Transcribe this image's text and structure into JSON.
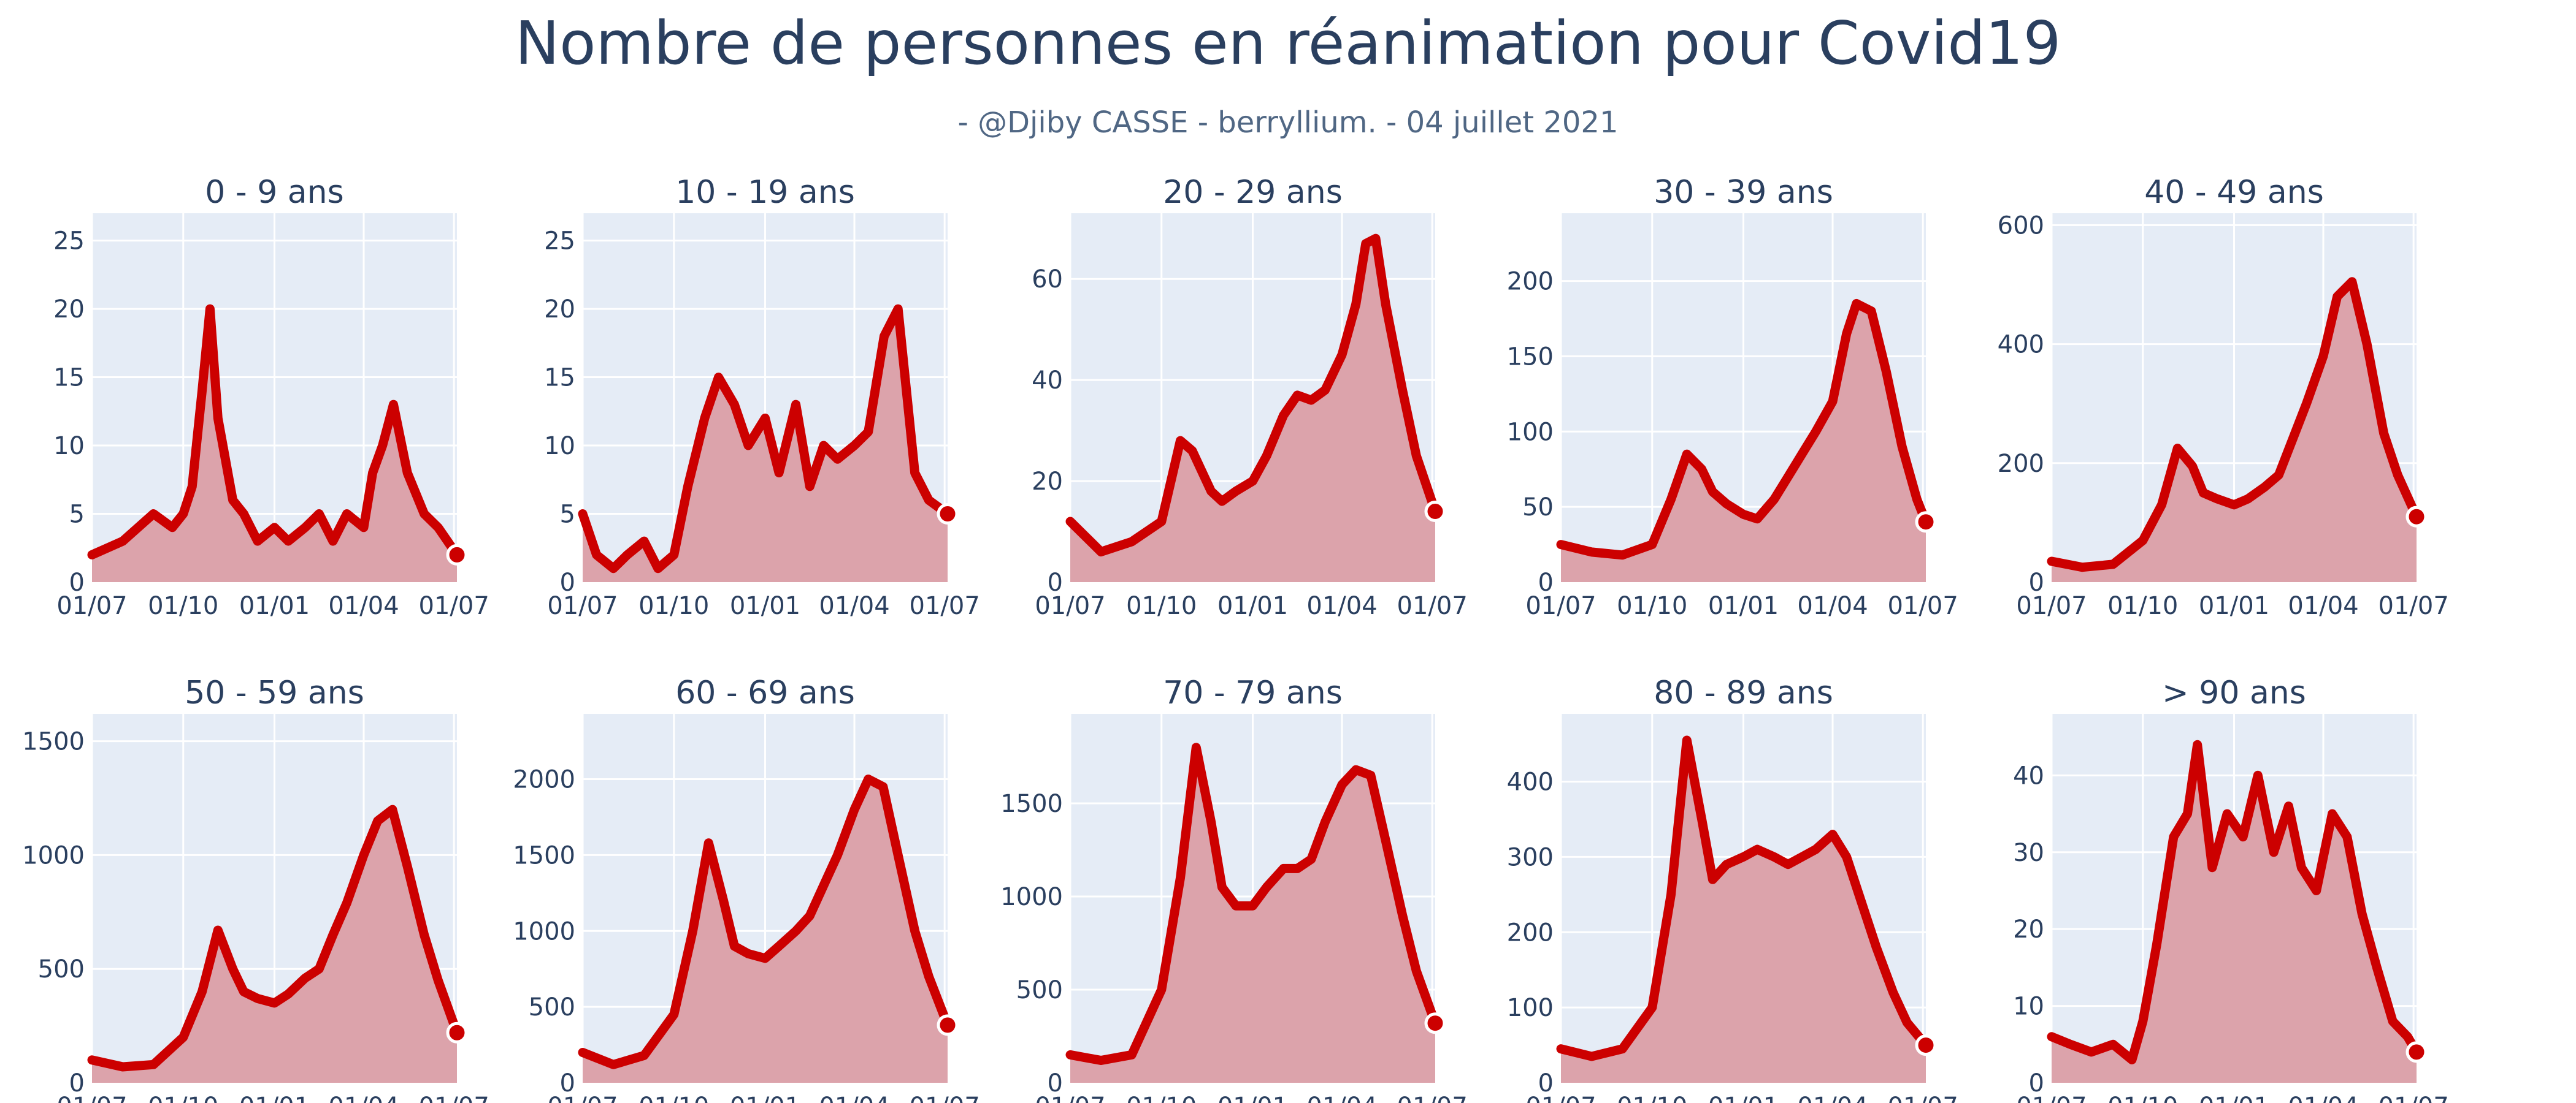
{
  "title": "Nombre de personnes en réanimation pour Covid19",
  "subtitle": "- @Djiby CASSE - berryllium. - 04 juillet 2021",
  "colors": {
    "line": "#cc0000",
    "fill": "#dca3ab",
    "plot_bg": "#e5ecf6",
    "grid": "#ffffff",
    "text": "#2a3f5f"
  },
  "chart_data": [
    {
      "type": "area",
      "title": "0 - 9 ans",
      "x_ticks": [
        "01/07",
        "01/10",
        "01/01",
        "01/04",
        "01/07"
      ],
      "y_ticks": [
        0,
        5,
        10,
        15,
        20,
        25
      ],
      "ylim": [
        0,
        27
      ],
      "x": [
        "2020-07-01",
        "2020-08-01",
        "2020-09-01",
        "2020-09-20",
        "2020-10-01",
        "2020-10-10",
        "2020-10-20",
        "2020-10-28",
        "2020-11-05",
        "2020-11-20",
        "2020-12-01",
        "2020-12-15",
        "2021-01-01",
        "2021-01-15",
        "2021-02-01",
        "2021-02-15",
        "2021-03-01",
        "2021-03-15",
        "2021-04-01",
        "2021-04-10",
        "2021-04-20",
        "2021-05-01",
        "2021-05-15",
        "2021-06-01",
        "2021-06-15",
        "2021-07-04"
      ],
      "values": [
        2,
        3,
        5,
        4,
        5,
        7,
        14,
        20,
        12,
        6,
        5,
        3,
        4,
        3,
        4,
        5,
        3,
        5,
        4,
        8,
        10,
        13,
        8,
        5,
        4,
        2
      ],
      "grid": true
    },
    {
      "type": "area",
      "title": "10 - 19 ans",
      "x_ticks": [
        "01/07",
        "01/10",
        "01/01",
        "01/04",
        "01/07"
      ],
      "y_ticks": [
        0,
        5,
        10,
        15,
        20,
        25
      ],
      "ylim": [
        0,
        27
      ],
      "x": [
        "2020-07-01",
        "2020-07-15",
        "2020-08-01",
        "2020-08-15",
        "2020-09-01",
        "2020-09-15",
        "2020-10-01",
        "2020-10-15",
        "2020-11-01",
        "2020-11-15",
        "2020-12-01",
        "2020-12-15",
        "2021-01-01",
        "2021-01-15",
        "2021-02-01",
        "2021-02-15",
        "2021-03-01",
        "2021-03-15",
        "2021-04-01",
        "2021-04-15",
        "2021-05-01",
        "2021-05-15",
        "2021-06-01",
        "2021-06-15",
        "2021-07-04"
      ],
      "values": [
        5,
        2,
        1,
        2,
        3,
        1,
        2,
        7,
        12,
        15,
        13,
        10,
        12,
        8,
        13,
        7,
        10,
        9,
        10,
        11,
        18,
        20,
        8,
        6,
        5
      ],
      "grid": true
    },
    {
      "type": "area",
      "title": "20 - 29 ans",
      "x_ticks": [
        "01/07",
        "01/10",
        "01/01",
        "01/04",
        "01/07"
      ],
      "y_ticks": [
        0,
        20,
        40,
        60
      ],
      "ylim": [
        0,
        73
      ],
      "x": [
        "2020-07-01",
        "2020-08-01",
        "2020-09-01",
        "2020-10-01",
        "2020-10-20",
        "2020-11-01",
        "2020-11-20",
        "2020-12-01",
        "2020-12-15",
        "2021-01-01",
        "2021-01-15",
        "2021-02-01",
        "2021-02-15",
        "2021-03-01",
        "2021-03-15",
        "2021-04-01",
        "2021-04-15",
        "2021-04-25",
        "2021-05-05",
        "2021-05-15",
        "2021-06-01",
        "2021-06-15",
        "2021-07-04"
      ],
      "values": [
        12,
        6,
        8,
        12,
        28,
        26,
        18,
        16,
        18,
        20,
        25,
        33,
        37,
        36,
        38,
        45,
        55,
        67,
        68,
        55,
        38,
        25,
        14
      ],
      "grid": true
    },
    {
      "type": "area",
      "title": "30 - 39 ans",
      "x_ticks": [
        "01/07",
        "01/10",
        "01/01",
        "01/04",
        "01/07"
      ],
      "y_ticks": [
        0,
        50,
        100,
        150,
        200
      ],
      "ylim": [
        0,
        245
      ],
      "x": [
        "2020-07-01",
        "2020-08-01",
        "2020-09-01",
        "2020-10-01",
        "2020-10-20",
        "2020-11-05",
        "2020-11-20",
        "2020-12-01",
        "2020-12-15",
        "2021-01-01",
        "2021-01-15",
        "2021-02-01",
        "2021-02-15",
        "2021-03-01",
        "2021-03-15",
        "2021-04-01",
        "2021-04-15",
        "2021-04-25",
        "2021-05-10",
        "2021-05-25",
        "2021-06-10",
        "2021-06-25",
        "2021-07-04"
      ],
      "values": [
        25,
        20,
        18,
        25,
        55,
        85,
        75,
        60,
        52,
        45,
        42,
        55,
        70,
        85,
        100,
        120,
        165,
        185,
        180,
        140,
        90,
        55,
        40
      ],
      "grid": true
    },
    {
      "type": "area",
      "title": "40 - 49 ans",
      "x_ticks": [
        "01/07",
        "01/10",
        "01/01",
        "01/04",
        "01/07"
      ],
      "y_ticks": [
        0,
        200,
        400,
        600
      ],
      "ylim": [
        0,
        620
      ],
      "x": [
        "2020-07-01",
        "2020-08-01",
        "2020-09-01",
        "2020-10-01",
        "2020-10-20",
        "2020-11-05",
        "2020-11-20",
        "2020-12-01",
        "2020-12-15",
        "2021-01-01",
        "2021-01-15",
        "2021-02-01",
        "2021-02-15",
        "2021-03-01",
        "2021-03-15",
        "2021-04-01",
        "2021-04-15",
        "2021-04-30",
        "2021-05-15",
        "2021-06-01",
        "2021-06-15",
        "2021-07-04"
      ],
      "values": [
        35,
        25,
        30,
        70,
        130,
        225,
        195,
        150,
        140,
        130,
        140,
        160,
        180,
        240,
        300,
        380,
        480,
        505,
        400,
        250,
        180,
        110
      ],
      "grid": true
    },
    {
      "type": "area",
      "title": "50 - 59 ans",
      "x_ticks": [
        "01/07",
        "01/10",
        "01/01",
        "01/04",
        "01/07"
      ],
      "y_ticks": [
        0,
        500,
        1000,
        1500
      ],
      "ylim": [
        0,
        1620
      ],
      "x": [
        "2020-07-01",
        "2020-08-01",
        "2020-09-01",
        "2020-10-01",
        "2020-10-20",
        "2020-11-05",
        "2020-11-20",
        "2020-12-01",
        "2020-12-15",
        "2021-01-01",
        "2021-01-15",
        "2021-02-01",
        "2021-02-15",
        "2021-03-01",
        "2021-03-15",
        "2021-04-01",
        "2021-04-15",
        "2021-04-30",
        "2021-05-15",
        "2021-06-01",
        "2021-06-15",
        "2021-07-04"
      ],
      "values": [
        100,
        70,
        80,
        200,
        400,
        670,
        500,
        400,
        370,
        350,
        390,
        460,
        500,
        650,
        790,
        1000,
        1150,
        1200,
        950,
        650,
        450,
        220
      ],
      "grid": true
    },
    {
      "type": "area",
      "title": "60 - 69 ans",
      "x_ticks": [
        "01/07",
        "01/10",
        "01/01",
        "01/04",
        "01/07"
      ],
      "y_ticks": [
        0,
        500,
        1000,
        1500,
        2000
      ],
      "ylim": [
        0,
        2430
      ],
      "x": [
        "2020-07-01",
        "2020-08-01",
        "2020-09-01",
        "2020-10-01",
        "2020-10-20",
        "2020-11-05",
        "2020-11-20",
        "2020-12-01",
        "2020-12-15",
        "2021-01-01",
        "2021-01-15",
        "2021-02-01",
        "2021-02-15",
        "2021-03-01",
        "2021-03-15",
        "2021-04-01",
        "2021-04-15",
        "2021-04-30",
        "2021-05-15",
        "2021-06-01",
        "2021-06-15",
        "2021-07-04"
      ],
      "values": [
        200,
        120,
        180,
        450,
        1000,
        1580,
        1200,
        900,
        850,
        820,
        900,
        1000,
        1100,
        1300,
        1500,
        1800,
        2000,
        1950,
        1500,
        1000,
        700,
        380
      ],
      "grid": true
    },
    {
      "type": "area",
      "title": "70 - 79 ans",
      "x_ticks": [
        "01/07",
        "01/10",
        "01/01",
        "01/04",
        "01/07"
      ],
      "y_ticks": [
        0,
        500,
        1000,
        1500
      ],
      "ylim": [
        0,
        1980
      ],
      "x": [
        "2020-07-01",
        "2020-08-01",
        "2020-09-01",
        "2020-10-01",
        "2020-10-20",
        "2020-11-05",
        "2020-11-20",
        "2020-12-01",
        "2020-12-15",
        "2021-01-01",
        "2021-01-15",
        "2021-02-01",
        "2021-02-15",
        "2021-03-01",
        "2021-03-15",
        "2021-04-01",
        "2021-04-15",
        "2021-04-30",
        "2021-05-15",
        "2021-06-01",
        "2021-06-15",
        "2021-07-04"
      ],
      "values": [
        150,
        120,
        150,
        500,
        1100,
        1800,
        1400,
        1050,
        950,
        950,
        1050,
        1150,
        1150,
        1200,
        1400,
        1600,
        1680,
        1650,
        1300,
        900,
        600,
        320
      ],
      "grid": true
    },
    {
      "type": "area",
      "title": "80 - 89 ans",
      "x_ticks": [
        "01/07",
        "01/10",
        "01/01",
        "01/04",
        "01/07"
      ],
      "y_ticks": [
        0,
        100,
        200,
        300,
        400
      ],
      "ylim": [
        0,
        490
      ],
      "x": [
        "2020-07-01",
        "2020-08-01",
        "2020-09-01",
        "2020-10-01",
        "2020-10-20",
        "2020-11-05",
        "2020-11-20",
        "2020-12-01",
        "2020-12-15",
        "2021-01-01",
        "2021-01-15",
        "2021-02-01",
        "2021-02-15",
        "2021-03-01",
        "2021-03-15",
        "2021-04-01",
        "2021-04-15",
        "2021-04-30",
        "2021-05-15",
        "2021-06-01",
        "2021-06-15",
        "2021-07-04"
      ],
      "values": [
        45,
        35,
        45,
        100,
        250,
        455,
        350,
        270,
        290,
        300,
        310,
        300,
        290,
        300,
        310,
        330,
        300,
        240,
        180,
        120,
        80,
        50
      ],
      "grid": true
    },
    {
      "type": "area",
      "title": "> 90 ans",
      "x_ticks": [
        "01/07",
        "01/10",
        "01/01",
        "01/04",
        "01/07"
      ],
      "y_ticks": [
        0,
        10,
        20,
        30,
        40
      ],
      "ylim": [
        0,
        48
      ],
      "x": [
        "2020-07-01",
        "2020-07-20",
        "2020-08-10",
        "2020-09-01",
        "2020-09-20",
        "2020-10-01",
        "2020-10-15",
        "2020-11-01",
        "2020-11-15",
        "2020-11-25",
        "2020-12-10",
        "2020-12-25",
        "2021-01-10",
        "2021-01-25",
        "2021-02-10",
        "2021-02-25",
        "2021-03-10",
        "2021-03-25",
        "2021-04-10",
        "2021-04-25",
        "2021-05-10",
        "2021-05-25",
        "2021-06-10",
        "2021-06-25",
        "2021-07-04"
      ],
      "values": [
        6,
        5,
        4,
        5,
        3,
        8,
        18,
        32,
        35,
        44,
        28,
        35,
        32,
        40,
        30,
        36,
        28,
        25,
        35,
        32,
        22,
        15,
        8,
        6,
        4
      ],
      "grid": true
    }
  ]
}
